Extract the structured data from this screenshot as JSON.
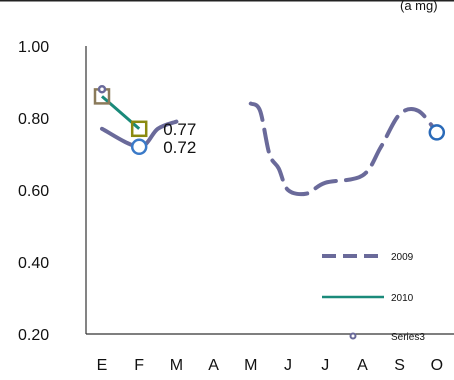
{
  "chart_data": {
    "type": "line",
    "top_text_left": "…",
    "top_text_right": "(a mg)",
    "categories": [
      "E",
      "F",
      "M",
      "A",
      "M",
      "J",
      "J",
      "A",
      "S",
      "O"
    ],
    "yticks": [
      "0.20",
      "0.40",
      "0.60",
      "0.80",
      "1.00"
    ],
    "ylim": [
      0.2,
      1.0
    ],
    "series": [
      {
        "name": "2009",
        "color": "#6a6a9a",
        "segments": [
          [
            [
              0,
              0.77
            ],
            [
              1,
              0.72
            ],
            [
              1.5,
              0.77
            ],
            [
              2,
              0.79
            ]
          ],
          [
            [
              4,
              0.84
            ],
            [
              4.25,
              0.82
            ],
            [
              4.5,
              0.7
            ],
            [
              4.75,
              0.66
            ],
            [
              5,
              0.6
            ],
            [
              5.5,
              0.59
            ],
            [
              6,
              0.62
            ],
            [
              7,
              0.64
            ],
            [
              7.5,
              0.72
            ],
            [
              8,
              0.81
            ],
            [
              8.5,
              0.82
            ],
            [
              9,
              0.76
            ]
          ]
        ],
        "dash_from_segment": 1
      },
      {
        "name": "2010",
        "color": "#1a8a7a",
        "points": [
          [
            0,
            0.86
          ],
          [
            1,
            0.77
          ]
        ],
        "square_markers": [
          [
            0,
            0.86
          ],
          [
            1,
            0.77
          ]
        ],
        "square_colors": [
          "#8a7a5a",
          "#8a8a10"
        ]
      },
      {
        "name": "Series3",
        "color": "#6a6a9a",
        "circle_markers": [
          [
            0,
            0.88
          ],
          [
            1,
            0.72
          ],
          [
            9,
            0.76
          ]
        ],
        "circle_sizes": [
          3,
          7,
          7
        ],
        "circle_colors": [
          "#6a6a9a",
          "#3a7ac8",
          "#2a6ab8"
        ]
      }
    ],
    "data_labels": [
      {
        "text": "0.77",
        "x": 1,
        "y": 0.77
      },
      {
        "text": "0.72",
        "x": 1,
        "y": 0.72
      }
    ],
    "legend": {
      "placement": "bottom-right",
      "entries": [
        {
          "name": "2009",
          "style": "dashed",
          "color": "#6a6a9a"
        },
        {
          "name": "2010",
          "style": "solid",
          "color": "#1a8a7a"
        },
        {
          "name": "Series3",
          "style": "marker",
          "color": "#6a6a9a"
        }
      ]
    },
    "grid": false
  }
}
